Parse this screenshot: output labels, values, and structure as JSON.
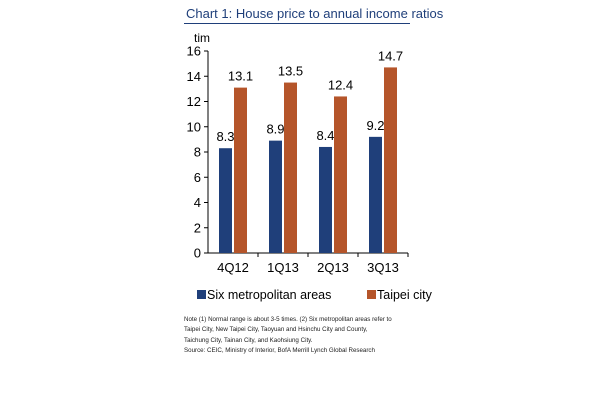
{
  "chart_data": {
    "type": "bar",
    "title": "Chart 1: House price to annual income ratios",
    "ylabel": "tim",
    "xlabel": "",
    "categories": [
      "4Q12",
      "1Q13",
      "2Q13",
      "3Q13"
    ],
    "ylim": [
      0,
      16
    ],
    "yticks": [
      0,
      2,
      4,
      6,
      8,
      10,
      12,
      14,
      16
    ],
    "grid": false,
    "legend_position": "bottom",
    "series": [
      {
        "name": "Six metropolitan areas",
        "values": [
          8.3,
          8.9,
          8.4,
          9.2
        ],
        "labels": [
          "8.3",
          "8.9",
          "8.4",
          "9.2"
        ],
        "color": "#1f3f7a"
      },
      {
        "name": "Taipei city",
        "values": [
          13.1,
          13.5,
          12.4,
          14.7
        ],
        "labels": [
          "13.1",
          "13.5",
          "12.4",
          "14.7"
        ],
        "color": "#b5552a"
      }
    ]
  },
  "notes": [
    "Note (1) Normal range is about 3-5 times. (2) Six metropolitan areas refer to",
    "Taipei City, New Taipei City, Taoyuan and Hsinchu City and County,",
    "Taichung City, Tainan City, and Kaohsiung City.",
    "Source: CEIC, Ministry of Interior, BofA Merrill Lynch Global Research"
  ]
}
